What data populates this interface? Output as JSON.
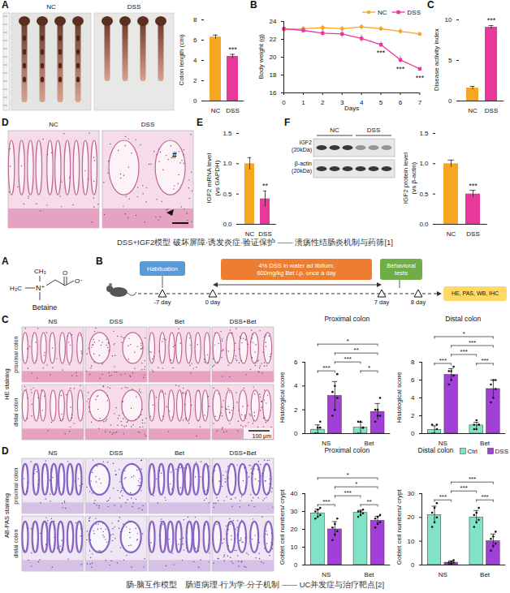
{
  "chart_data": [
    {
      "type": "bar",
      "categories": [
        "NC",
        "DSS"
      ],
      "values": [
        6.3,
        4.4
      ],
      "errors": [
        0.2,
        0.2
      ],
      "colors": [
        "#f5a623",
        "#e8399a"
      ],
      "significance": [
        null,
        "***"
      ],
      "ylabel": "Colon length (cm)",
      "ylim": [
        0,
        8
      ],
      "yticks": [
        0,
        2,
        4,
        6,
        8
      ]
    },
    {
      "type": "line",
      "xlabel": "Days",
      "ylabel": "Body weight (g)",
      "x": [
        0,
        1,
        2,
        3,
        4,
        5,
        6,
        7
      ],
      "xlim": [
        0,
        7
      ],
      "xticks": [
        0,
        1,
        2,
        3,
        4,
        5,
        6,
        7
      ],
      "ylim": [
        16,
        24
      ],
      "yticks": [
        16,
        18,
        20,
        22,
        24
      ],
      "legend": "top",
      "series": [
        {
          "name": "NC",
          "color": "#f5a623",
          "marker": "circle",
          "values": [
            23.1,
            23.2,
            23.3,
            23.2,
            23.4,
            23.2,
            22.9,
            22.6
          ],
          "errors": [
            0.4,
            0.3,
            0.3,
            0.3,
            0.3,
            0.3,
            0.3,
            0.3
          ]
        },
        {
          "name": "DSS",
          "color": "#e8399a",
          "marker": "square",
          "values": [
            23.2,
            23.0,
            22.7,
            22.6,
            22.1,
            21.4,
            19.7,
            18.7
          ],
          "errors": [
            0.3,
            0.3,
            0.4,
            0.4,
            0.4,
            0.3,
            0.4,
            0.4
          ],
          "significance": [
            null,
            null,
            null,
            null,
            null,
            "***",
            "***",
            "***"
          ]
        }
      ]
    },
    {
      "type": "bar",
      "categories": [
        "NC",
        "DSS"
      ],
      "values": [
        1.6,
        9.1
      ],
      "errors": [
        0.2,
        0.2
      ],
      "colors": [
        "#f5a623",
        "#e8399a"
      ],
      "significance": [
        null,
        "***"
      ],
      "ylabel": "Disease activity index",
      "ylim": [
        0,
        10
      ],
      "yticks": [
        0,
        5,
        10
      ]
    },
    {
      "type": "bar",
      "categories": [
        "NC",
        "DSS"
      ],
      "values": [
        1.0,
        0.42
      ],
      "errors": [
        0.1,
        0.13
      ],
      "colors": [
        "#f5a623",
        "#e8399a"
      ],
      "significance": [
        null,
        "**"
      ],
      "ylabel": "IGF2 mRNA level (vs GAPDH)",
      "ylim": [
        0,
        1.5
      ],
      "yticks": [
        {
          "value": 0,
          "label": "0.0"
        },
        0.5,
        {
          "value": 1,
          "label": "1.0"
        },
        1.5
      ]
    },
    {
      "type": "bar",
      "categories": [
        "NC",
        "DSS"
      ],
      "values": [
        1.0,
        0.5
      ],
      "errors": [
        0.06,
        0.06
      ],
      "colors": [
        "#f5a623",
        "#e8399a"
      ],
      "significance": [
        null,
        "***"
      ],
      "ylabel": "IGF2 protein level (vs β-actin)",
      "ylim": [
        0,
        1.5
      ],
      "yticks": [
        {
          "value": 0,
          "label": "0.0"
        },
        0.5,
        {
          "value": 1,
          "label": "1.0"
        },
        1.5
      ]
    },
    {
      "type": "bar",
      "title": "Proximal colon",
      "ylabel": "Histological score",
      "categories": [
        "NS",
        "Bet"
      ],
      "ylim": [
        0,
        6
      ],
      "yticks": [
        0,
        2,
        4,
        6
      ],
      "series": [
        {
          "name": "Ctrl",
          "color": "#80e2c7",
          "values": [
            0.33,
            0.5
          ],
          "errors": [
            0.4,
            0.45
          ],
          "points": [
            [
              0,
              0,
              0.5,
              0,
              0.5,
              1
            ],
            [
              0,
              0,
              0.5,
              1,
              1,
              0.5
            ]
          ]
        },
        {
          "name": "DSS",
          "color": "#a23fd6",
          "values": [
            3.17,
            1.83
          ],
          "errors": [
            1.2,
            0.7
          ],
          "points": [
            [
              1.5,
              2,
              3,
              3.5,
              4,
              5
            ],
            [
              1,
              1.5,
              1.5,
              2,
              2,
              3
            ]
          ]
        }
      ],
      "comparisons": [
        {
          "from": [
            "NS",
            "Ctrl"
          ],
          "to": [
            "NS",
            "DSS"
          ],
          "label": "***"
        },
        {
          "from": [
            "Bet",
            "Ctrl"
          ],
          "to": [
            "Bet",
            "DSS"
          ],
          "label": "*"
        },
        {
          "from": [
            "NS",
            "DSS"
          ],
          "to": [
            "Bet",
            "Ctrl"
          ],
          "label": "***"
        },
        {
          "from": [
            "NS",
            "DSS"
          ],
          "to": [
            "Bet",
            "DSS"
          ],
          "label": "**"
        },
        {
          "from": [
            "NS",
            "Ctrl"
          ],
          "to": [
            "Bet",
            "DSS"
          ],
          "label": "*"
        }
      ]
    },
    {
      "type": "bar",
      "title": "Distal colon",
      "ylabel": "Histological score",
      "categories": [
        "NS",
        "Bet"
      ],
      "ylim": [
        0,
        8
      ],
      "yticks": [
        0,
        2,
        4,
        6,
        8
      ],
      "series": [
        {
          "name": "Ctrl",
          "color": "#80e2c7",
          "values": [
            0.42,
            0.92
          ],
          "errors": [
            0.45,
            0.35
          ],
          "points": [
            [
              0,
              0,
              0.5,
              1,
              0,
              1
            ],
            [
              0.5,
              0.5,
              1,
              1,
              1.5,
              1
            ]
          ]
        },
        {
          "name": "DSS",
          "color": "#a23fd6",
          "values": [
            6.58,
            5.0
          ],
          "errors": [
            0.7,
            1.0
          ],
          "points": [
            [
              5.5,
              6,
              6.5,
              7,
              7,
              7.5
            ],
            [
              3.5,
              4,
              5,
              5.5,
              6,
              6
            ]
          ]
        }
      ],
      "comparisons": [
        {
          "from": [
            "NS",
            "Ctrl"
          ],
          "to": [
            "NS",
            "DSS"
          ],
          "label": "***"
        },
        {
          "from": [
            "Bet",
            "Ctrl"
          ],
          "to": [
            "Bet",
            "DSS"
          ],
          "label": "***"
        },
        {
          "from": [
            "NS",
            "DSS"
          ],
          "to": [
            "Bet",
            "Ctrl"
          ],
          "label": "***"
        },
        {
          "from": [
            "NS",
            "DSS"
          ],
          "to": [
            "Bet",
            "DSS"
          ],
          "label": "***"
        },
        {
          "from": [
            "NS",
            "Ctrl"
          ],
          "to": [
            "Bet",
            "DSS"
          ],
          "label": "*"
        }
      ]
    },
    {
      "type": "bar",
      "title": "Proximal colon",
      "ylabel": "Goblet cell numbers/ crypt",
      "categories": [
        "NS",
        "Bet"
      ],
      "ylim": [
        0,
        40
      ],
      "yticks": [
        0,
        10,
        20,
        30,
        40
      ],
      "series": [
        {
          "name": "Ctrl",
          "color": "#80e2c7",
          "values": [
            29,
            29.2
          ],
          "errors": [
            2.3,
            1.5
          ],
          "points": [
            [
              26,
              27,
              28,
              30,
              31,
              32
            ],
            [
              27,
              28,
              29,
              30,
              30,
              31
            ]
          ]
        },
        {
          "name": "DSS",
          "color": "#a23fd6",
          "values": [
            20,
            24.8
          ],
          "errors": [
            4.3,
            2.5
          ],
          "points": [
            [
              14,
              17,
              19,
              21,
              23,
              26
            ],
            [
              21,
              23,
              24,
              26,
              27,
              28
            ]
          ]
        }
      ],
      "comparisons": [
        {
          "from": [
            "NS",
            "Ctrl"
          ],
          "to": [
            "NS",
            "DSS"
          ],
          "label": "***"
        },
        {
          "from": [
            "Bet",
            "Ctrl"
          ],
          "to": [
            "Bet",
            "DSS"
          ],
          "label": "**"
        },
        {
          "from": [
            "NS",
            "DSS"
          ],
          "to": [
            "Bet",
            "Ctrl"
          ],
          "label": "***"
        },
        {
          "from": [
            "NS",
            "DSS"
          ],
          "to": [
            "Bet",
            "DSS"
          ],
          "label": "*"
        },
        {
          "from": [
            "NS",
            "Ctrl"
          ],
          "to": [
            "Bet",
            "DSS"
          ],
          "label": "*"
        }
      ]
    },
    {
      "type": "bar",
      "title": "Distal colon",
      "ylabel": "Goblet cell numbers/ crypt",
      "categories": [
        "NS",
        "Bet"
      ],
      "ylim": [
        0,
        30
      ],
      "yticks": [
        0,
        10,
        20,
        30
      ],
      "legend": "top-right",
      "series": [
        {
          "name": "Ctrl",
          "color": "#80e2c7",
          "values": [
            21,
            20
          ],
          "errors": [
            3.7,
            2.9
          ],
          "points": [
            [
              16,
              18,
              20,
              22,
              24,
              26
            ],
            [
              16,
              18,
              19,
              21,
              22,
              24
            ]
          ]
        },
        {
          "name": "DSS",
          "color": "#a23fd6",
          "values": [
            1,
            10
          ],
          "errors": [
            0.7,
            3.0
          ],
          "points": [
            [
              0,
              0.5,
              1,
              1,
              1.5,
              2
            ],
            [
              6,
              8,
              9,
              11,
              12,
              14
            ]
          ]
        }
      ],
      "comparisons": [
        {
          "from": [
            "NS",
            "Ctrl"
          ],
          "to": [
            "NS",
            "DSS"
          ],
          "label": "***"
        },
        {
          "from": [
            "Bet",
            "Ctrl"
          ],
          "to": [
            "Bet",
            "DSS"
          ],
          "label": "***"
        },
        {
          "from": [
            "NS",
            "DSS"
          ],
          "to": [
            "Bet",
            "Ctrl"
          ],
          "label": "***"
        },
        {
          "from": [
            "NS",
            "DSS"
          ],
          "to": [
            "Bet",
            "DSS"
          ],
          "label": "***"
        }
      ]
    }
  ],
  "figures": [
    {
      "panel_labels": [
        "A",
        "B",
        "C",
        "D",
        "E",
        "F"
      ],
      "photo_groups": [
        "NC",
        "DSS"
      ],
      "histology_groups": [
        "NC",
        "DSS"
      ],
      "histology_marks": [
        "#"
      ],
      "blot": {
        "groups": [
          "NC",
          "DSS"
        ],
        "bands": [
          {
            "name": "IGF2",
            "size": "(20kDa)"
          },
          {
            "name": "β-actin",
            "size": "(20kDa)"
          }
        ]
      },
      "caption": "DSS+IGF2模型 破坏屏障·诱发炎症·验证保护 —— 溃疡性结肠炎机制与药筛[1]"
    },
    {
      "panel_labels": [
        "A",
        "B",
        "C",
        "D"
      ],
      "compound": "Betaine",
      "structure_labels": [
        "CH₃",
        "H₃C",
        "N⁺",
        "O",
        "O⁻"
      ],
      "timeline": {
        "steps": [
          [
            "Habituation"
          ],
          [
            "4% DSS in water ad libitum;",
            "600mg/kg Bet i.p. once a day"
          ],
          [
            "Behavioral tests"
          ]
        ],
        "days": [
          "-7 day",
          "0 day",
          "7 day",
          "8 day"
        ],
        "assays": "HE, PAS, WB, IHC"
      },
      "image_groups": [
        "NS",
        "DSS",
        "Bet",
        "DSS+Bet"
      ],
      "image_rows": [
        "proximal colon",
        "distal colon"
      ],
      "stains": [
        "HE staining",
        "AB-PAS staining"
      ],
      "scale_bar": "100 μm",
      "caption": "肠-脑互作模型　肠道病理·行为学·分子机制 —— UC并发症与治疗靶点[2]"
    }
  ]
}
